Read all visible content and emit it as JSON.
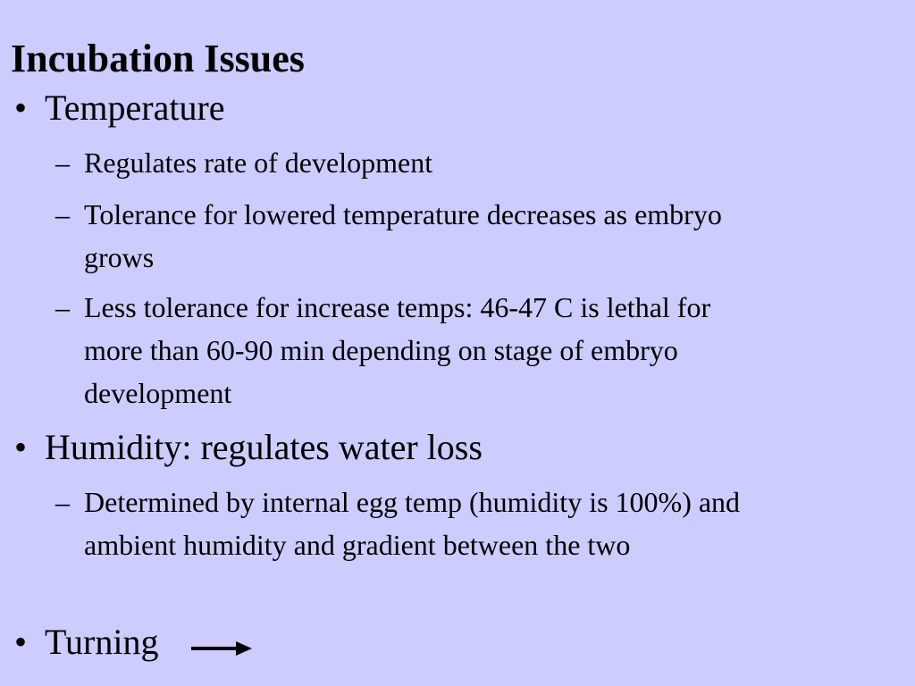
{
  "slide": {
    "title": "Incubation Issues",
    "bullet_glyph": "•",
    "dash_glyph": "–",
    "items": [
      {
        "text": "Temperature",
        "subitems": [
          "Regulates rate of development",
          "Tolerance for lowered temperature decreases as embryo grows",
          "Less tolerance for increase temps: 46-47 C is lethal for more than 60-90 min depending on stage of embryo development"
        ]
      },
      {
        "text": "Humidity: regulates water loss",
        "subitems": [
          "Determined by internal egg temp (humidity is 100%) and ambient humidity and gradient between the two"
        ]
      },
      {
        "text": "Turning",
        "subitems": []
      }
    ],
    "arrow_icon": "right-arrow-icon",
    "background_color": "#ccccff",
    "text_color": "#000000"
  }
}
